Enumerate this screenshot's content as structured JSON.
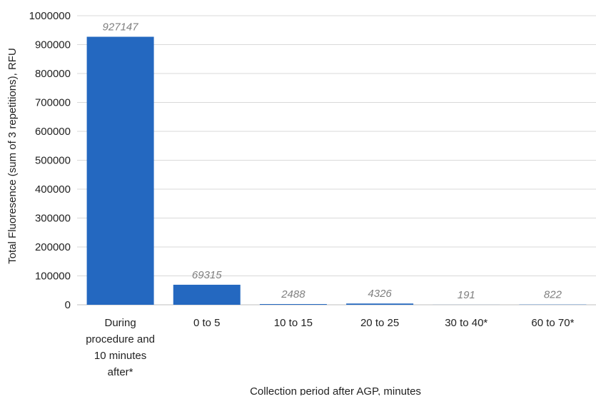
{
  "chart_data": {
    "type": "bar",
    "title": "",
    "xlabel": "Collection period after AGP, minutes",
    "ylabel": "Total Fluoresence (sum of 3 repetitions), RFU",
    "ylim": [
      0,
      1000000
    ],
    "yticks": [
      "0",
      "100000",
      "200000",
      "300000",
      "400000",
      "500000",
      "600000",
      "700000",
      "800000",
      "900000",
      "1000000"
    ],
    "ytick_values": [
      0,
      100000,
      200000,
      300000,
      400000,
      500000,
      600000,
      700000,
      800000,
      900000,
      1000000
    ],
    "grid": true,
    "legend": "none",
    "bar_color": "#2468c0",
    "categories": [
      [
        "During",
        "procedure and",
        "10 minutes",
        "after*"
      ],
      [
        "0 to 5"
      ],
      [
        "10 to 15"
      ],
      [
        "20 to 25"
      ],
      [
        "30 to 40*"
      ],
      [
        "60 to 70*"
      ]
    ],
    "values": [
      927147,
      69315,
      2488,
      4326,
      191,
      822
    ],
    "data_labels": [
      "927147",
      "69315",
      "2488",
      "4326",
      "191",
      "822"
    ]
  }
}
